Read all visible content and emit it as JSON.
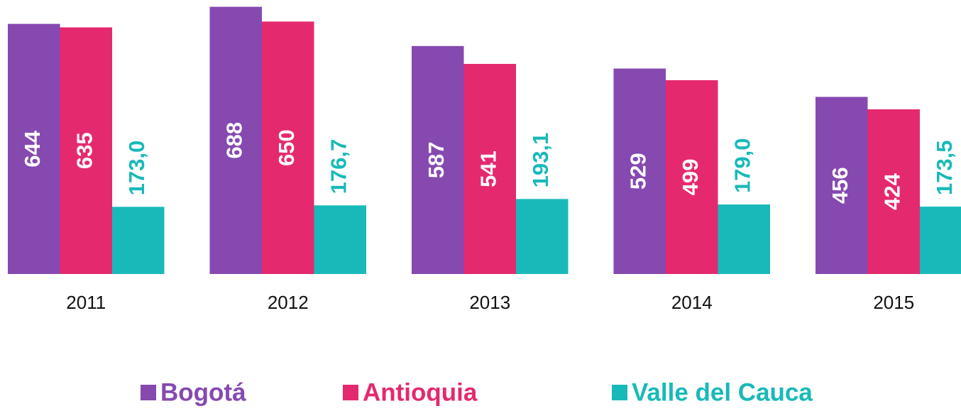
{
  "chart_data": {
    "type": "bar",
    "categories": [
      "2011",
      "2012",
      "2013",
      "2014",
      "2015"
    ],
    "series": [
      {
        "name": "Bogotá",
        "color": "#8549b0",
        "values": [
          644,
          688,
          587,
          529,
          456
        ]
      },
      {
        "name": "Antioquia",
        "color": "#e5296f",
        "values": [
          635,
          650,
          541,
          499,
          424
        ]
      },
      {
        "name": "Valle del Cauca",
        "color": "#19b9b9",
        "values": [
          173.0,
          176.7,
          193.1,
          179.0,
          173.5
        ],
        "value_labels": [
          "173,0",
          "176,7",
          "193,1",
          "179,0",
          "173,5"
        ]
      }
    ],
    "ylim": [
      0,
      700
    ]
  }
}
